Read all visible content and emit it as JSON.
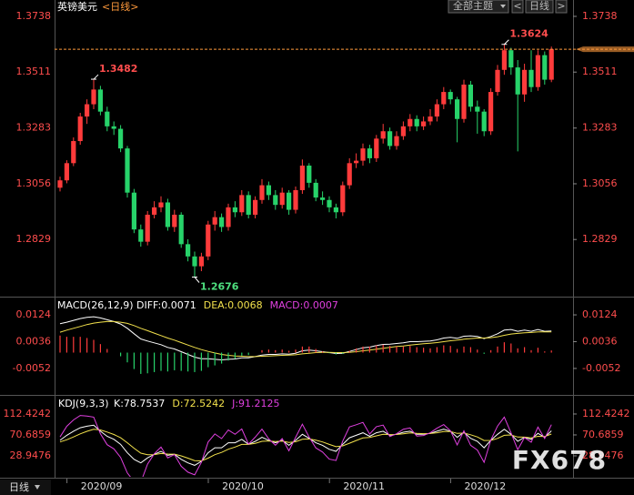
{
  "header": {
    "title": "英镑美元",
    "period": "<日线>",
    "buttons": [
      "全部主题",
      "<",
      "日线",
      ">"
    ]
  },
  "footer": {
    "period": "日线",
    "watermark": "FX678"
  },
  "chart_data": [
    {
      "type": "candlestick",
      "categories": [
        null,
        null,
        null,
        null,
        "2020/09",
        null,
        null,
        null,
        null,
        null,
        null,
        null,
        null,
        null,
        null,
        null,
        null,
        null,
        null,
        null,
        null,
        null,
        null,
        null,
        null,
        "2020/10",
        null,
        null,
        null,
        null,
        null,
        null,
        null,
        null,
        null,
        null,
        null,
        null,
        null,
        null,
        null,
        null,
        null,
        "2020/11",
        null,
        null,
        null,
        null,
        null,
        null,
        null,
        null,
        null,
        null,
        null,
        null,
        null,
        null,
        null,
        null,
        null,
        "2020/12",
        null,
        null,
        null,
        null,
        null,
        null,
        null,
        null,
        null,
        null,
        null,
        null
      ],
      "ohlc": [
        [
          1.304,
          1.3085,
          1.3025,
          1.307
        ],
        [
          1.307,
          1.3152,
          1.3058,
          1.314
        ],
        [
          1.314,
          1.3245,
          1.3128,
          1.323
        ],
        [
          1.323,
          1.3345,
          1.3215,
          1.333
        ],
        [
          1.333,
          1.34,
          1.33,
          1.338
        ],
        [
          1.338,
          1.3482,
          1.336,
          1.344
        ],
        [
          1.344,
          1.3455,
          1.3335,
          1.335
        ],
        [
          1.335,
          1.337,
          1.327,
          1.329
        ],
        [
          1.329,
          1.331,
          1.3255,
          1.328
        ],
        [
          1.328,
          1.3295,
          1.3185,
          1.32
        ],
        [
          1.32,
          1.321,
          1.3,
          1.302
        ],
        [
          1.302,
          1.3035,
          1.2855,
          1.287
        ],
        [
          1.287,
          1.289,
          1.28,
          1.282
        ],
        [
          1.282,
          1.2945,
          1.2805,
          1.293
        ],
        [
          1.293,
          1.2985,
          1.2915,
          1.296
        ],
        [
          1.296,
          1.3005,
          1.294,
          1.298
        ],
        [
          1.298,
          1.2995,
          1.2865,
          1.288
        ],
        [
          1.288,
          1.295,
          1.286,
          1.293
        ],
        [
          1.293,
          1.294,
          1.2795,
          1.281
        ],
        [
          1.281,
          1.283,
          1.274,
          1.276
        ],
        [
          1.276,
          1.278,
          1.2676,
          1.272
        ],
        [
          1.272,
          1.2775,
          1.27,
          1.276
        ],
        [
          1.276,
          1.2905,
          1.2745,
          1.289
        ],
        [
          1.289,
          1.2945,
          1.2865,
          1.292
        ],
        [
          1.292,
          1.2935,
          1.286,
          1.288
        ],
        [
          1.288,
          1.2975,
          1.2865,
          1.296
        ],
        [
          1.296,
          1.2985,
          1.292,
          1.294
        ],
        [
          1.294,
          1.303,
          1.2925,
          1.301
        ],
        [
          1.301,
          1.3025,
          1.2915,
          1.293
        ],
        [
          1.293,
          1.3005,
          1.2915,
          1.299
        ],
        [
          1.299,
          1.3075,
          1.2975,
          1.305
        ],
        [
          1.305,
          1.3065,
          1.299,
          1.301
        ],
        [
          1.301,
          1.303,
          1.295,
          1.297
        ],
        [
          1.297,
          1.304,
          1.2955,
          1.302
        ],
        [
          1.302,
          1.303,
          1.293,
          1.295
        ],
        [
          1.295,
          1.3045,
          1.2935,
          1.303
        ],
        [
          1.303,
          1.3155,
          1.3015,
          1.313
        ],
        [
          1.313,
          1.314,
          1.304,
          1.306
        ],
        [
          1.306,
          1.3075,
          1.2985,
          1.3
        ],
        [
          1.3,
          1.3025,
          1.297,
          1.299
        ],
        [
          1.299,
          1.3005,
          1.294,
          1.296
        ],
        [
          1.296,
          1.2975,
          1.2915,
          1.294
        ],
        [
          1.294,
          1.3065,
          1.2925,
          1.305
        ],
        [
          1.305,
          1.316,
          1.3035,
          1.314
        ],
        [
          1.314,
          1.318,
          1.312,
          1.315
        ],
        [
          1.315,
          1.322,
          1.313,
          1.32
        ],
        [
          1.32,
          1.3215,
          1.314,
          1.316
        ],
        [
          1.316,
          1.3255,
          1.3145,
          1.324
        ],
        [
          1.324,
          1.33,
          1.322,
          1.327
        ],
        [
          1.327,
          1.3285,
          1.3195,
          1.321
        ],
        [
          1.321,
          1.327,
          1.3195,
          1.325
        ],
        [
          1.325,
          1.331,
          1.3235,
          1.329
        ],
        [
          1.329,
          1.334,
          1.327,
          1.332
        ],
        [
          1.332,
          1.3335,
          1.327,
          1.329
        ],
        [
          1.329,
          1.333,
          1.3275,
          1.331
        ],
        [
          1.331,
          1.336,
          1.3295,
          1.333
        ],
        [
          1.333,
          1.34,
          1.331,
          1.338
        ],
        [
          1.338,
          1.345,
          1.336,
          1.343
        ],
        [
          1.343,
          1.344,
          1.338,
          1.34
        ],
        [
          1.34,
          1.341,
          1.3225,
          1.332
        ],
        [
          1.332,
          1.348,
          1.3305,
          1.346
        ],
        [
          1.346,
          1.3475,
          1.335,
          1.337
        ],
        [
          1.337,
          1.3395,
          1.326,
          1.335
        ],
        [
          1.335,
          1.336,
          1.325,
          1.327
        ],
        [
          1.327,
          1.3445,
          1.3255,
          1.343
        ],
        [
          1.343,
          1.354,
          1.3415,
          1.352
        ],
        [
          1.352,
          1.3624,
          1.35,
          1.36
        ],
        [
          1.36,
          1.361,
          1.35,
          1.353
        ],
        [
          1.353,
          1.356,
          1.3188,
          1.342
        ],
        [
          1.342,
          1.3545,
          1.339,
          1.352
        ],
        [
          1.352,
          1.36,
          1.343,
          1.345
        ],
        [
          1.345,
          1.36,
          1.3435,
          1.358
        ],
        [
          1.358,
          1.3595,
          1.346,
          1.348
        ],
        [
          1.348,
          1.3615,
          1.347,
          1.3604
        ]
      ],
      "up_color": "#ff3b3b",
      "down_color": "#27d36a",
      "last_line_color": "#ff9a3c",
      "ylim": [
        1.26,
        1.3775
      ],
      "yticks": [
        1.2829,
        1.3056,
        1.3283,
        1.3511,
        1.3738
      ],
      "annotations": [
        1.3482,
        1.3624,
        1.2676
      ]
    },
    {
      "type": "macd",
      "title": "MACD(26,12,9)",
      "ylim": [
        -0.0127,
        0.0163
      ],
      "yticks": [
        -0.0052,
        0.0036,
        0.0124
      ],
      "series": [
        {
          "name": "DIFF:0.0071",
          "color": "#ffffff",
          "kind": "line",
          "values": [
            0.0095,
            0.01,
            0.0106,
            0.0112,
            0.0116,
            0.0118,
            0.0114,
            0.0108,
            0.0102,
            0.0094,
            0.008,
            0.0062,
            0.0045,
            0.0038,
            0.0032,
            0.0026,
            0.0017,
            0.0012,
            0.0003,
            -0.0006,
            -0.0015,
            -0.002,
            -0.002,
            -0.0022,
            -0.0024,
            -0.0022,
            -0.0021,
            -0.0017,
            -0.0017,
            -0.0013,
            -0.0008,
            -0.0006,
            -0.0006,
            -0.0004,
            -0.0005,
            -0.0002,
            0.0006,
            0.0008,
            0.0006,
            0.0003,
            0,
            -0.0003,
            -0.0002,
            0.0004,
            0.001,
            0.0016,
            0.0018,
            0.0023,
            0.0027,
            0.0028,
            0.003,
            0.0032,
            0.0036,
            0.0036,
            0.0037,
            0.0038,
            0.0042,
            0.0048,
            0.005,
            0.0047,
            0.0054,
            0.0055,
            0.0053,
            0.0046,
            0.0053,
            0.0062,
            0.0074,
            0.0076,
            0.007,
            0.0074,
            0.007,
            0.0076,
            0.007,
            0.0071
          ]
        },
        {
          "name": "DEA:0.0068",
          "color": "#f2e14c",
          "kind": "line",
          "values": [
            0.0067,
            0.0074,
            0.008,
            0.0086,
            0.0092,
            0.0097,
            0.01,
            0.0102,
            0.0102,
            0.01,
            0.0096,
            0.0089,
            0.008,
            0.0072,
            0.0064,
            0.0056,
            0.0048,
            0.0041,
            0.0033,
            0.0025,
            0.0017,
            0.001,
            0.0004,
            -0.0001,
            -0.0006,
            -0.0009,
            -0.0011,
            -0.0012,
            -0.0013,
            -0.0013,
            -0.0012,
            -0.0011,
            -0.001,
            -0.0009,
            -0.0008,
            -0.0007,
            -0.0004,
            -0.0002,
            0,
            0.0001,
            0.0001,
            0,
            0,
            0.0001,
            0.0003,
            0.0006,
            0.0008,
            0.0011,
            0.0014,
            0.0017,
            0.002,
            0.0022,
            0.0025,
            0.0027,
            0.0029,
            0.0031,
            0.0033,
            0.0036,
            0.0039,
            0.0041,
            0.0044,
            0.0046,
            0.0048,
            0.0048,
            0.0049,
            0.0052,
            0.0057,
            0.0061,
            0.0063,
            0.0065,
            0.0066,
            0.0068,
            0.0068,
            0.0068
          ]
        },
        {
          "name": "MACD:0.0007",
          "color": "#e040e0",
          "kind": "bar",
          "up_color": "#ff3b3b",
          "down_color": "#27d36a",
          "values": [
            0.0056,
            0.0052,
            0.0052,
            0.0052,
            0.0048,
            0.0042,
            0.0028,
            0.0012,
            0,
            -0.0012,
            -0.0032,
            -0.0054,
            -0.007,
            -0.0068,
            -0.0064,
            -0.006,
            -0.0062,
            -0.0058,
            -0.006,
            -0.0062,
            -0.0064,
            -0.006,
            -0.0048,
            -0.0042,
            -0.0036,
            -0.0026,
            -0.002,
            -0.001,
            -0.0008,
            0,
            0.0008,
            0.001,
            0.0008,
            0.001,
            0.0006,
            0.001,
            0.002,
            0.002,
            0.0012,
            0.0004,
            -0.0002,
            -0.0006,
            -0.0004,
            0.0006,
            0.0014,
            0.002,
            0.002,
            0.0024,
            0.0026,
            0.0022,
            0.002,
            0.002,
            0.0022,
            0.0018,
            0.0016,
            0.0014,
            0.0018,
            0.0024,
            0.0022,
            0.0012,
            0.002,
            0.0018,
            0.001,
            -0.0004,
            0.0008,
            0.002,
            0.0034,
            0.003,
            0.0014,
            0.0018,
            0.0008,
            0.0016,
            0.0004,
            0.0007
          ]
        }
      ]
    },
    {
      "type": "kdj",
      "title": "KDJ(9,3,3)",
      "ylim": [
        -9.2,
        139.6
      ],
      "yticks": [
        28.9476,
        70.6859,
        112.4242
      ],
      "series": [
        {
          "name": "K:78.7537",
          "color": "#ffffff",
          "kind": "line",
          "values": [
            60,
            70,
            78,
            85,
            88,
            90,
            78,
            68,
            62,
            52,
            35,
            22,
            15,
            25,
            32,
            38,
            30,
            32,
            22,
            15,
            10,
            18,
            35,
            45,
            45,
            55,
            55,
            62,
            52,
            58,
            66,
            60,
            55,
            60,
            50,
            60,
            72,
            64,
            55,
            50,
            42,
            38,
            52,
            65,
            70,
            75,
            68,
            75,
            78,
            70,
            72,
            76,
            78,
            72,
            72,
            74,
            78,
            82,
            78,
            66,
            76,
            64,
            58,
            45,
            60,
            72,
            82,
            72,
            58,
            66,
            62,
            74,
            66,
            78.7537
          ]
        },
        {
          "name": "D:72.5242",
          "color": "#f2e14c",
          "kind": "line",
          "values": [
            56.7,
            61.1,
            66.7,
            72.8,
            77.9,
            81.9,
            80.6,
            76.4,
            71.6,
            65.1,
            55.1,
            44.1,
            34.4,
            31.3,
            31.5,
            33.7,
            32.5,
            32.3,
            28.9,
            24.3,
            19.5,
            19.0,
            24.3,
            31.2,
            35.8,
            42.2,
            46.5,
            51.7,
            51.8,
            53.9,
            57.9,
            58.6,
            57.4,
            58.3,
            55.5,
            57.0,
            62.0,
            62.7,
            60.1,
            56.7,
            51.8,
            47.2,
            48.8,
            54.2,
            59.5,
            64.7,
            65.8,
            68.9,
            71.9,
            71.3,
            71.5,
            73.0,
            74.7,
            73.8,
            73.2,
            73.5,
            75.0,
            77.3,
            77.5,
            73.7,
            74.5,
            71.0,
            66.7,
            59.5,
            59.7,
            63.8,
            69.9,
            70.6,
            66.4,
            66.3,
            64.9,
            67.9,
            67.3,
            72.5242
          ]
        },
        {
          "name": "J:91.2125",
          "color": "#e040e0",
          "kind": "line",
          "values": [
            66.6,
            87.8,
            100.6,
            109.4,
            108.2,
            106.2,
            72.8,
            51.2,
            42.8,
            25.8,
            -5.2,
            -22.2,
            -23.8,
            12.4,
            33,
            46.6,
            25,
            31.4,
            8.2,
            -3.6,
            -9,
            16,
            56.4,
            72.6,
            63.4,
            80.6,
            72,
            82.6,
            52.4,
            66.2,
            82.2,
            62.8,
            50.2,
            63.4,
            39,
            66,
            92,
            66.6,
            44.8,
            36.6,
            22.4,
            19.6,
            58.4,
            86.6,
            91,
            95.6,
            72.4,
            87.2,
            90.2,
            67.4,
            73,
            82,
            84.6,
            68.4,
            69.6,
            75,
            84,
            91.4,
            79,
            50.6,
            79,
            50,
            40.6,
            16,
            60.6,
            88.4,
            106.2,
            74.8,
            41.2,
            65.4,
            56.2,
            86.2,
            63.4,
            91.2125
          ]
        }
      ]
    }
  ]
}
